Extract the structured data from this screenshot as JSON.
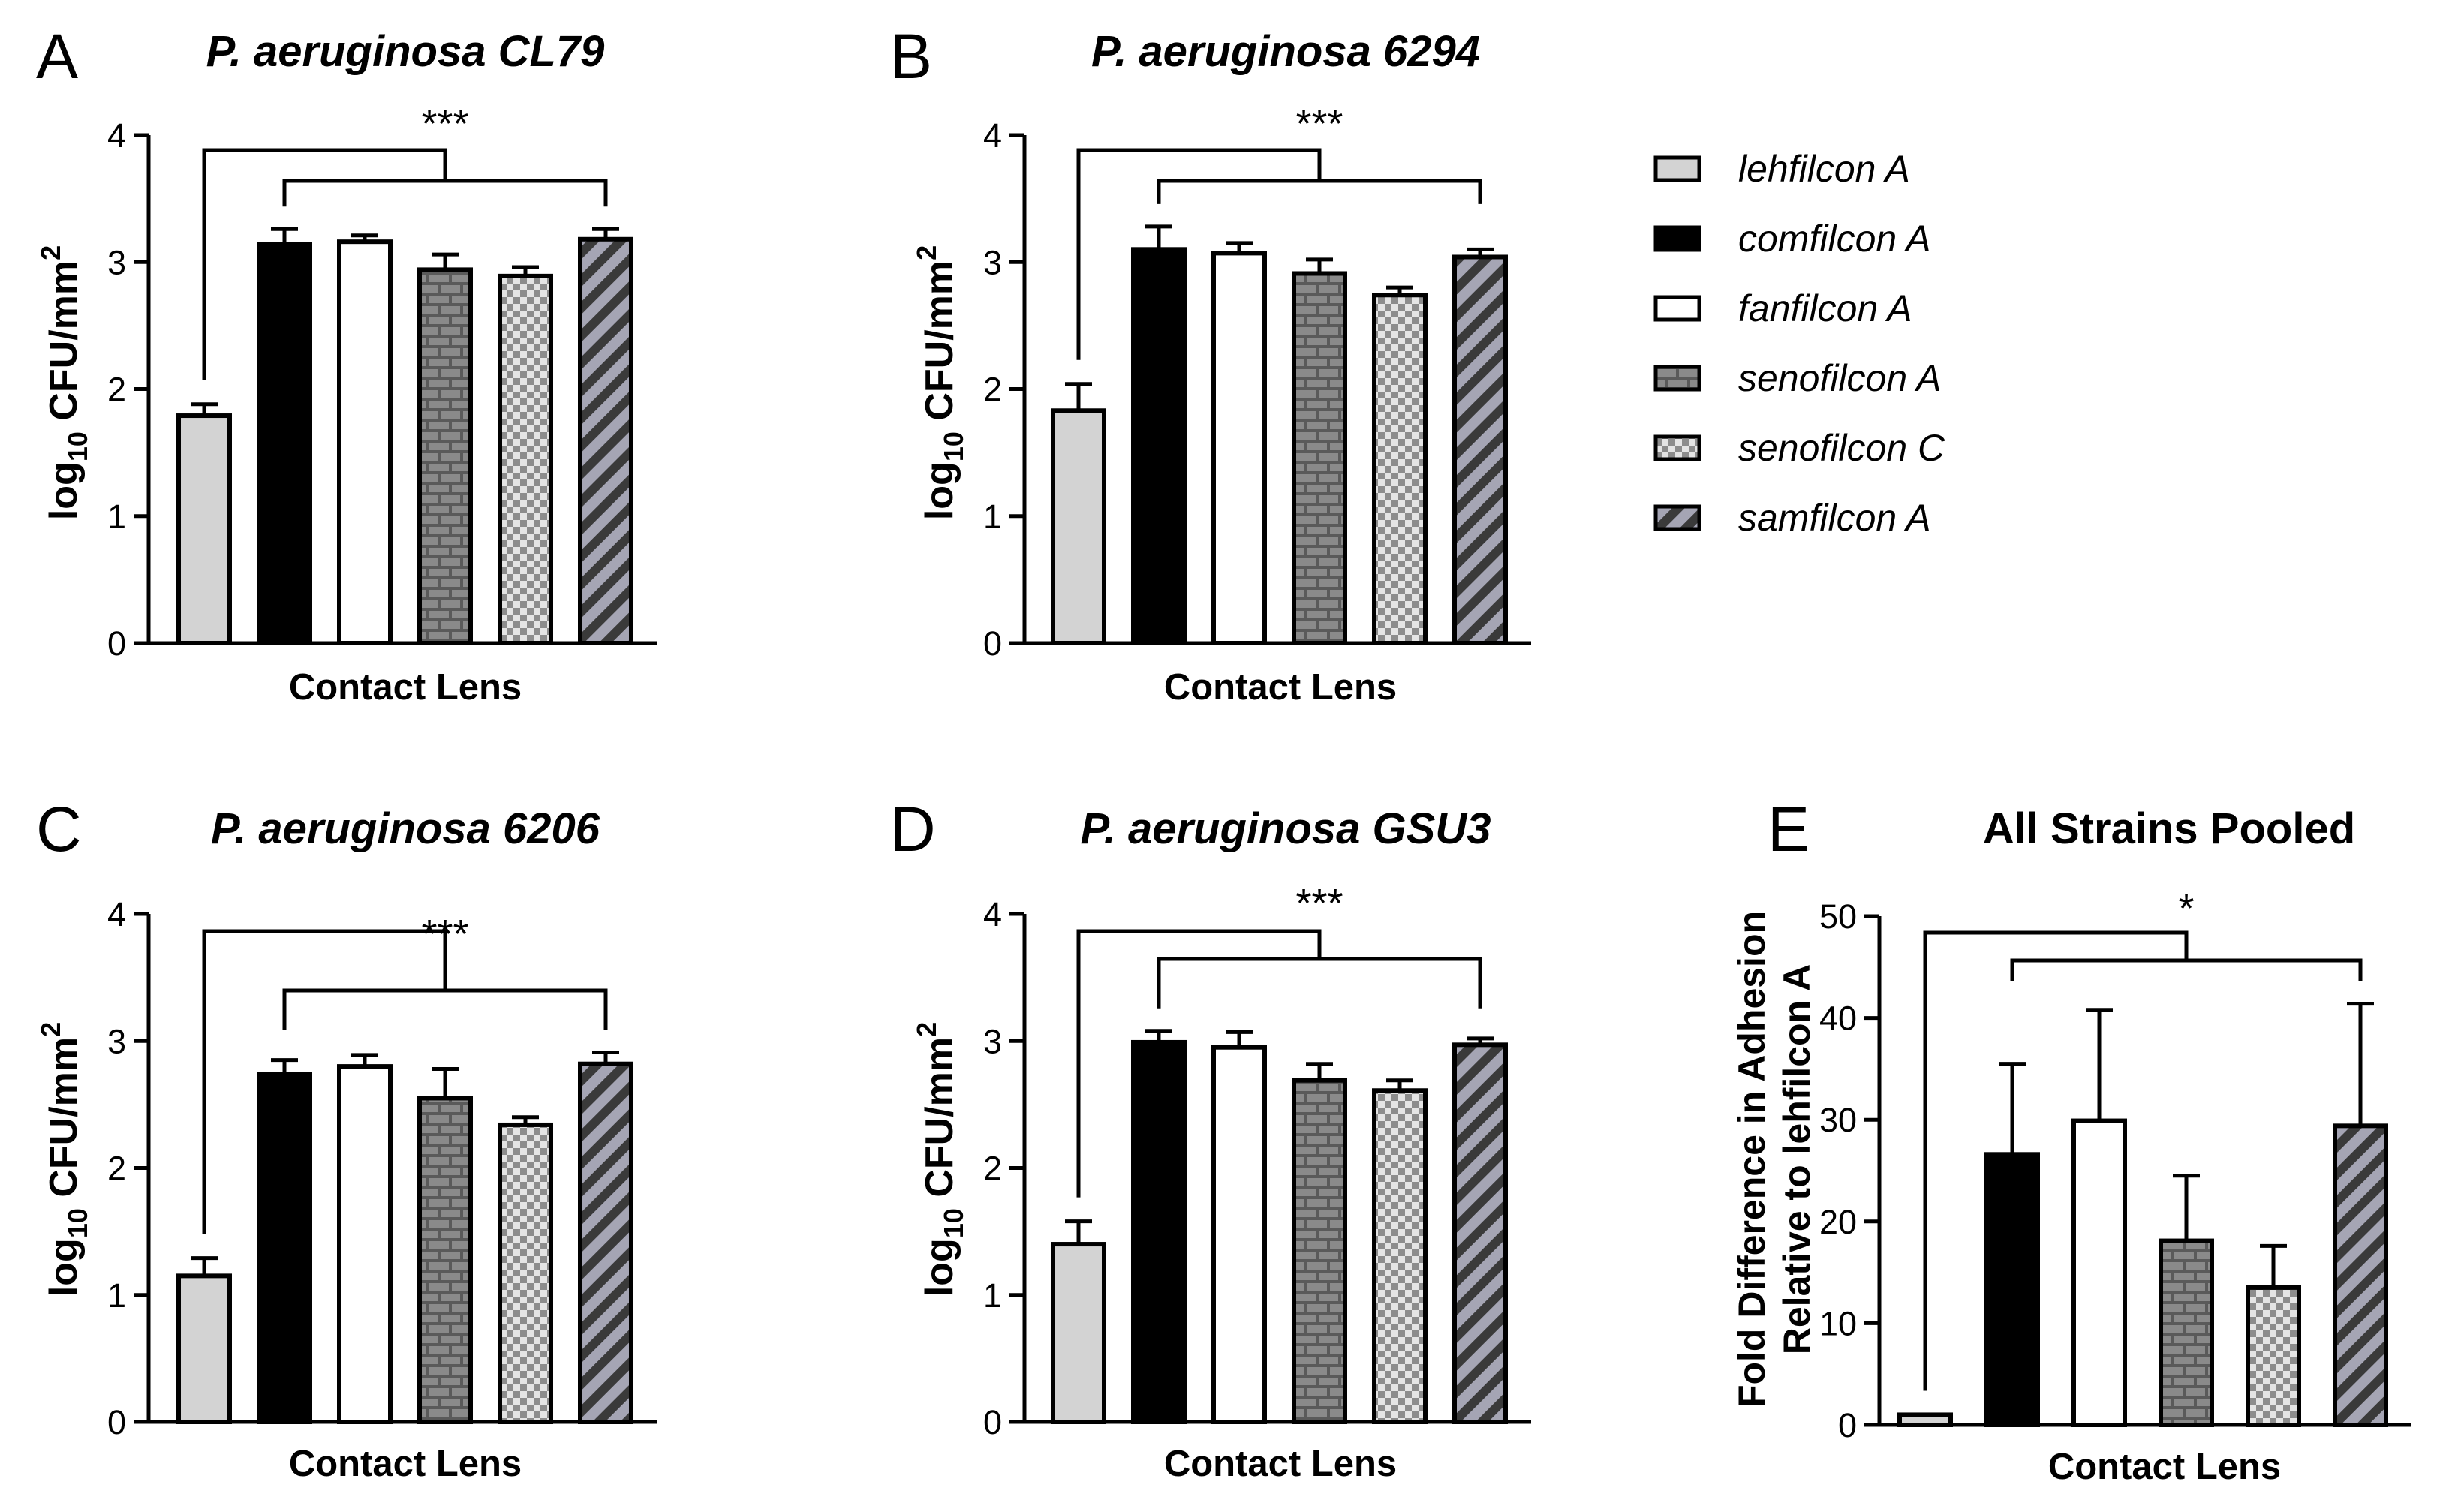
{
  "colors": {
    "lehfilcon": "#d3d3d3",
    "comfilcon": "#000000",
    "fanfilcon": "#ffffff",
    "senofilconA": "brick-pattern-gray",
    "senofilconC": "checker-pattern-gray",
    "samfilcon": "diagonal-stripe-gray"
  },
  "legend": [
    "lehfilcon A",
    "comfilcon A",
    "fanfilcon A",
    "senofilcon A",
    "senofilcon C",
    "samfilcon A"
  ],
  "chart_data": [
    {
      "panel": "A",
      "type": "bar",
      "title": "P. aeruginosa CL79",
      "xlabel": "Contact Lens",
      "ylabel_main": "log",
      "ylabel_sub": "10",
      "ylabel_rest": " CFU/mm",
      "ylabel_sup": "2",
      "ylim": [
        0,
        4
      ],
      "yticks": [
        0,
        1,
        2,
        3,
        4
      ],
      "categories": [
        "lehfilcon A",
        "comfilcon A",
        "fanfilcon A",
        "senofilcon A",
        "senofilcon C",
        "samfilcon A"
      ],
      "values": [
        1.79,
        3.14,
        3.16,
        2.94,
        2.89,
        3.18
      ],
      "errors": [
        0.09,
        0.12,
        0.05,
        0.12,
        0.07,
        0.08
      ],
      "significance": "***"
    },
    {
      "panel": "B",
      "type": "bar",
      "title": "P. aeruginosa 6294",
      "xlabel": "Contact Lens",
      "ylabel_main": "log",
      "ylabel_sub": "10",
      "ylabel_rest": " CFU/mm",
      "ylabel_sup": "2",
      "ylim": [
        0,
        4
      ],
      "yticks": [
        0,
        1,
        2,
        3,
        4
      ],
      "categories": [
        "lehfilcon A",
        "comfilcon A",
        "fanfilcon A",
        "senofilcon A",
        "senofilcon C",
        "samfilcon A"
      ],
      "values": [
        1.83,
        3.1,
        3.07,
        2.91,
        2.74,
        3.04
      ],
      "errors": [
        0.21,
        0.18,
        0.08,
        0.11,
        0.06,
        0.06
      ],
      "significance": "***"
    },
    {
      "panel": "C",
      "type": "bar",
      "title": "P. aeruginosa 6206",
      "xlabel": "Contact Lens",
      "ylabel_main": "log",
      "ylabel_sub": "10",
      "ylabel_rest": " CFU/mm",
      "ylabel_sup": "2",
      "ylim": [
        0,
        4
      ],
      "yticks": [
        0,
        1,
        2,
        3,
        4
      ],
      "categories": [
        "lehfilcon A",
        "comfilcon A",
        "fanfilcon A",
        "senofilcon A",
        "senofilcon C",
        "samfilcon A"
      ],
      "values": [
        1.15,
        2.74,
        2.8,
        2.55,
        2.34,
        2.82
      ],
      "errors": [
        0.14,
        0.11,
        0.09,
        0.23,
        0.06,
        0.09
      ],
      "significance": "***"
    },
    {
      "panel": "D",
      "type": "bar",
      "title": "P. aeruginosa GSU3",
      "xlabel": "Contact Lens",
      "ylabel_main": "log",
      "ylabel_sub": "10",
      "ylabel_rest": " CFU/mm",
      "ylabel_sup": "2",
      "ylim": [
        0,
        4
      ],
      "yticks": [
        0,
        1,
        2,
        3,
        4
      ],
      "categories": [
        "lehfilcon A",
        "comfilcon A",
        "fanfilcon A",
        "senofilcon A",
        "senofilcon C",
        "samfilcon A"
      ],
      "values": [
        1.4,
        2.99,
        2.95,
        2.69,
        2.61,
        2.97
      ],
      "errors": [
        0.18,
        0.09,
        0.12,
        0.13,
        0.08,
        0.05
      ],
      "significance": "***"
    },
    {
      "panel": "E",
      "type": "bar",
      "title": "All Strains Pooled",
      "xlabel": "Contact Lens",
      "ylabel_line1": "Fold Difference in Adhesion",
      "ylabel_line2": "Relative to lehfilcon A",
      "ylim": [
        0,
        50
      ],
      "yticks": [
        0,
        10,
        20,
        30,
        40,
        50
      ],
      "categories": [
        "lehfilcon A",
        "comfilcon A",
        "fanfilcon A",
        "senofilcon A",
        "senofilcon C",
        "samfilcon A"
      ],
      "values": [
        1.0,
        26.6,
        29.9,
        18.1,
        13.5,
        29.4
      ],
      "errors": [
        0.0,
        8.9,
        10.9,
        6.4,
        4.1,
        12.0
      ],
      "significance": "*"
    }
  ]
}
